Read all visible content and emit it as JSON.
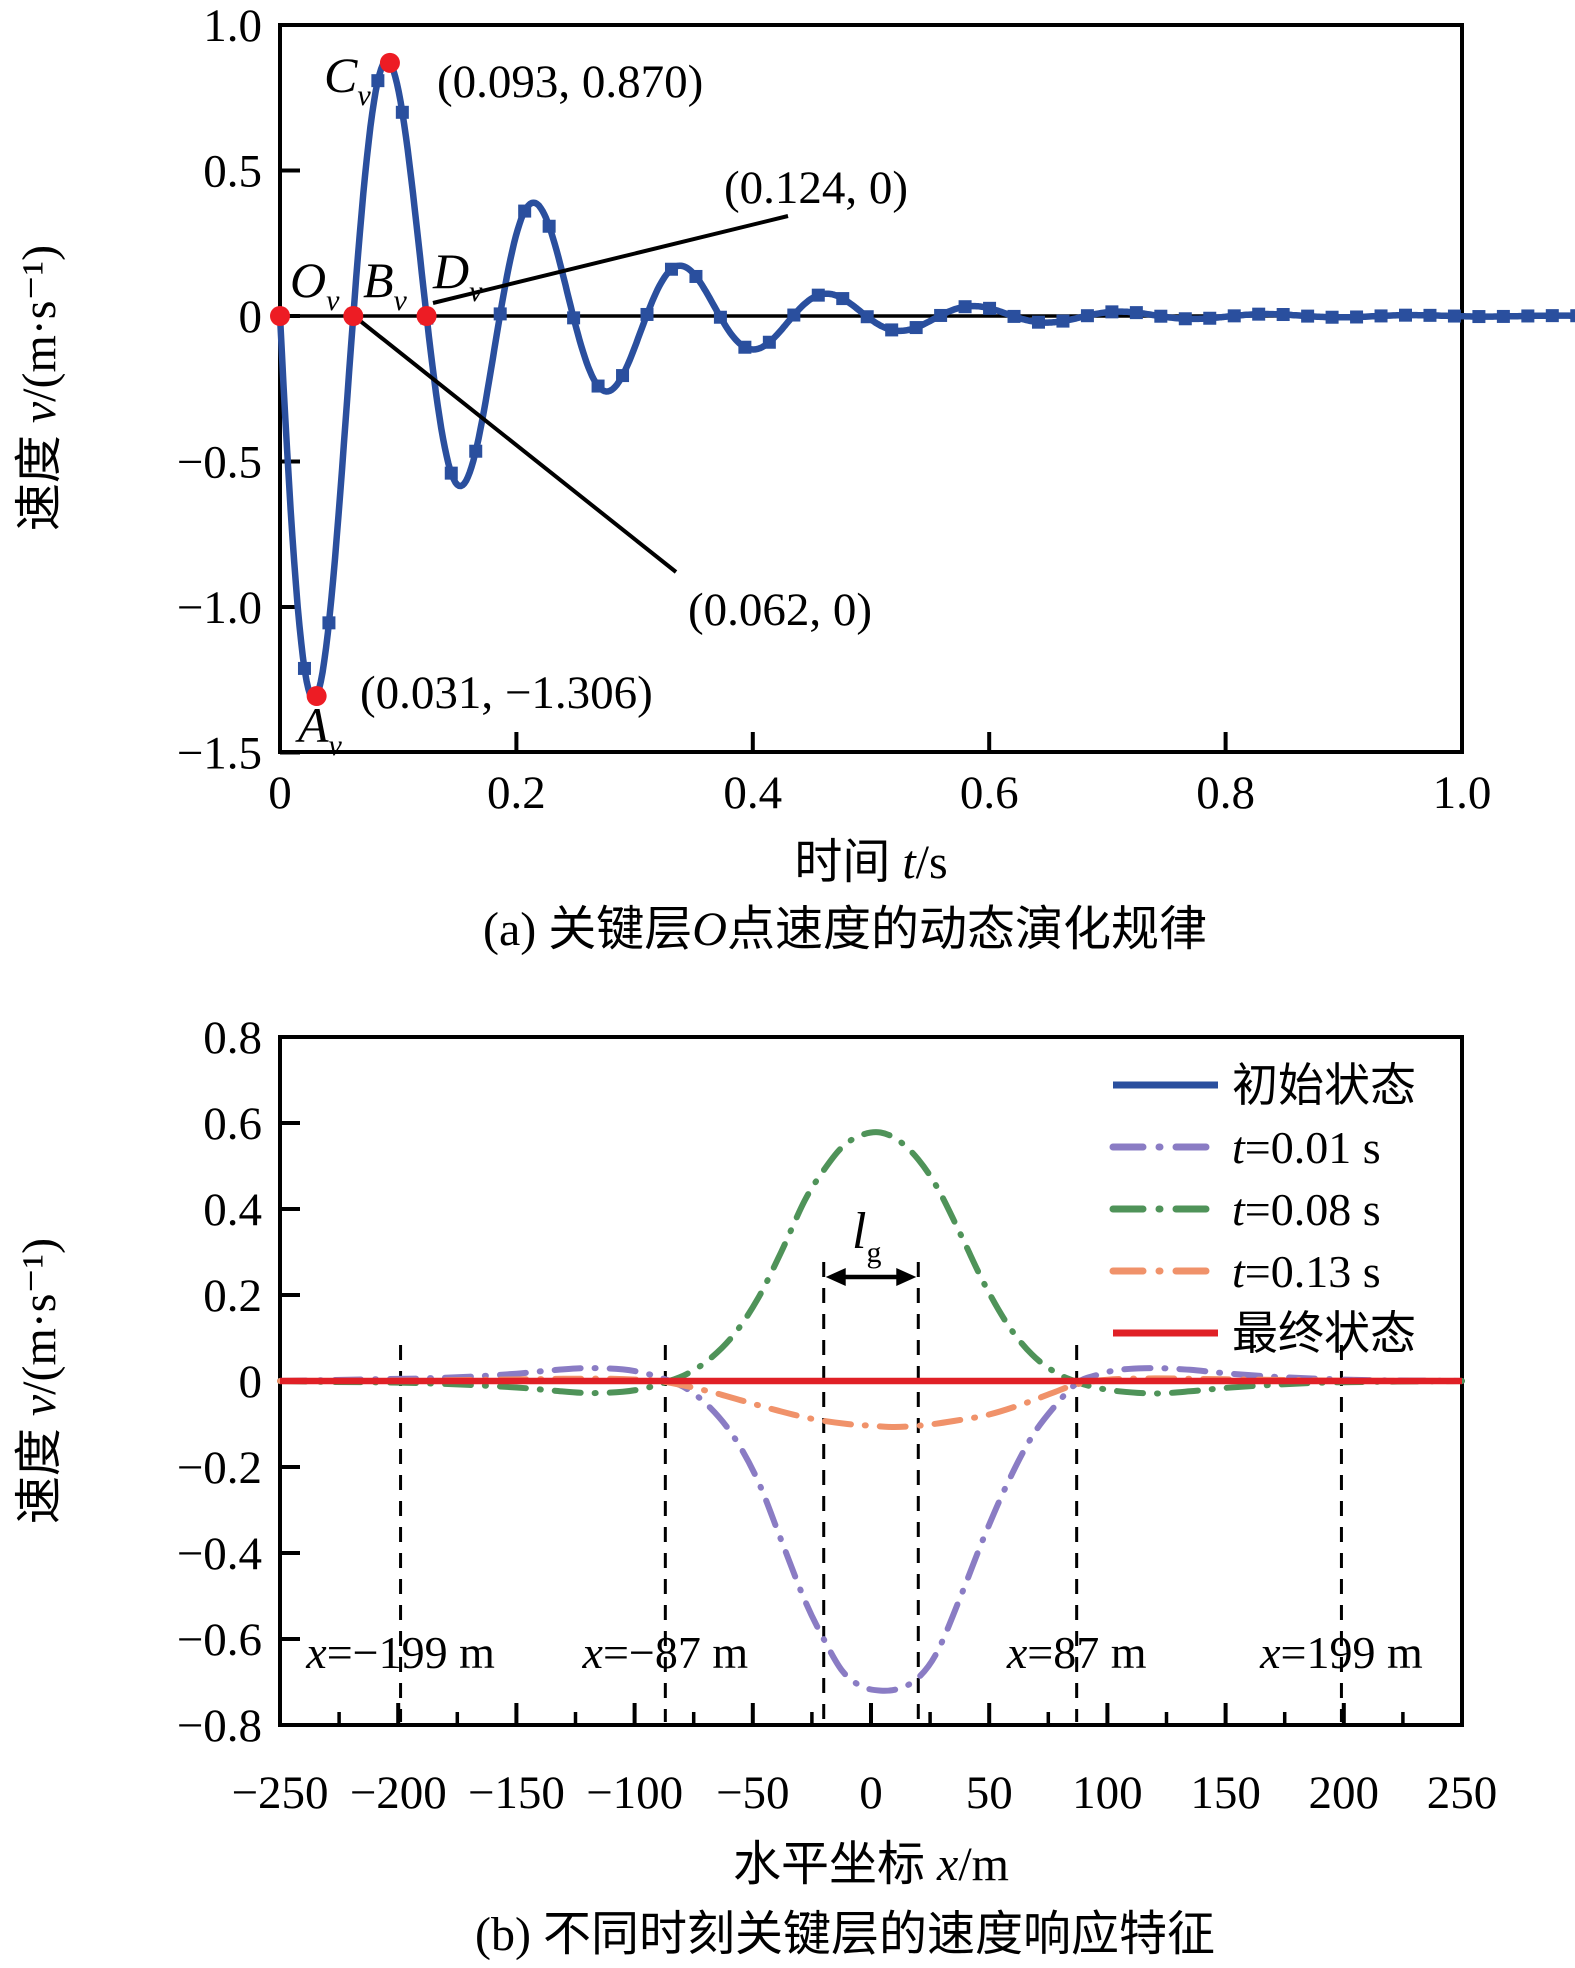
{
  "figure": {
    "background": "#ffffff",
    "colors": {
      "curve_blue": "#2a4f9e",
      "annotation_red": "#ed1c24",
      "final_red": "#e02026",
      "purple": "#8a7cc4",
      "green": "#4f9359",
      "orange": "#f0926a",
      "axis_black": "#000000"
    }
  },
  "chart_data": [
    {
      "id": "a",
      "type": "line",
      "caption": "(a) 关键层O点速度的动态演化规律",
      "xlabel": "时间 t/s",
      "ylabel": "速度 v/(m·s⁻¹)",
      "xlim": [
        0,
        1.0
      ],
      "ylim": [
        -1.5,
        1.0
      ],
      "x_tick_values": [
        0,
        0.2,
        0.4,
        0.6,
        0.8,
        1.0
      ],
      "x_tick_labels": [
        "0",
        "0.2",
        "0.4",
        "0.6",
        "0.8",
        "1.0"
      ],
      "y_tick_values": [
        1.0,
        0.5,
        0,
        -0.5,
        -1.0,
        -1.5
      ],
      "y_tick_labels": [
        "1.0",
        "0.5",
        "0",
        "−0.5",
        "−1.0",
        "−1.5"
      ],
      "grid": false,
      "series": [
        {
          "name": "关键层O点速度",
          "color": "#2a4f9e",
          "line": "solid",
          "marker": "square",
          "model": {
            "type": "damped_sine",
            "formula": "v(t) = −A·exp(−λt)·sin(2πt/T)",
            "A": 1.6,
            "lambda": 6.55,
            "T": 0.124,
            "t_start": 0,
            "t_end": 1.115,
            "marker_step": 0.0207
          }
        }
      ],
      "key_points": [
        {
          "name": "O",
          "sub": "v",
          "t": 0,
          "v": 0
        },
        {
          "name": "A",
          "sub": "v",
          "t": 0.031,
          "v": -1.306
        },
        {
          "name": "B",
          "sub": "v",
          "t": 0.062,
          "v": 0
        },
        {
          "name": "C",
          "sub": "v",
          "t": 0.093,
          "v": 0.87
        },
        {
          "name": "D",
          "sub": "v",
          "t": 0.124,
          "v": 0
        }
      ],
      "annotations": [
        {
          "text": "(0.093, 0.870)",
          "refers_to": "C_v"
        },
        {
          "text": "(0.124, 0)",
          "refers_to": "D_v"
        },
        {
          "text": "(0.062, 0)",
          "refers_to": "B_v"
        },
        {
          "text": "(0.031, −1.306)",
          "refers_to": "A_v"
        }
      ],
      "point_color": "#ed1c24"
    },
    {
      "id": "b",
      "type": "line",
      "caption": "(b) 不同时刻关键层的速度响应特征",
      "xlabel": "水平坐标 x/m",
      "ylabel": "速度 v/(m·s⁻¹)",
      "xlim": [
        -250,
        250
      ],
      "ylim": [
        -0.8,
        0.8
      ],
      "x_tick_values": [
        -250,
        -200,
        -150,
        -100,
        -50,
        0,
        50,
        100,
        150,
        200,
        250
      ],
      "x_tick_labels": [
        "−250",
        "−200",
        "−150",
        "−100",
        "−50",
        "0",
        "50",
        "100",
        "150",
        "200",
        "250"
      ],
      "x_minor_tick_values": [
        -225,
        -175,
        -125,
        -75,
        -25,
        25,
        75,
        125,
        175,
        225
      ],
      "y_tick_values": [
        0.8,
        0.6,
        0.4,
        0.2,
        0,
        -0.2,
        -0.4,
        -0.6,
        -0.8
      ],
      "y_tick_labels": [
        "0.8",
        "0.6",
        "0.4",
        "0.2",
        "0",
        "−0.2",
        "−0.4",
        "−0.6",
        "−0.8"
      ],
      "grid": false,
      "legend_position": "top-right",
      "series": [
        {
          "name": "初始状态",
          "color": "#2a4f9e",
          "line": "solid",
          "points": [
            [
              -250,
              0
            ],
            [
              250,
              0
            ]
          ]
        },
        {
          "name": "t=0.01 s",
          "color": "#8a7cc4",
          "line": "dashdot",
          "points": [
            [
              -250,
              0
            ],
            [
              -230,
              0.002
            ],
            [
              -210,
              0.004
            ],
            [
              -190,
              0.006
            ],
            [
              -170,
              0.01
            ],
            [
              -150,
              0.017
            ],
            [
              -135,
              0.025
            ],
            [
              -120,
              0.03
            ],
            [
              -105,
              0.027
            ],
            [
              -95,
              0.017
            ],
            [
              -87,
              0.004
            ],
            [
              -78,
              -0.018
            ],
            [
              -68,
              -0.062
            ],
            [
              -58,
              -0.13
            ],
            [
              -48,
              -0.23
            ],
            [
              -38,
              -0.37
            ],
            [
              -28,
              -0.51
            ],
            [
              -20,
              -0.6
            ],
            [
              -12,
              -0.675
            ],
            [
              -4,
              -0.71
            ],
            [
              4,
              -0.72
            ],
            [
              12,
              -0.715
            ],
            [
              20,
              -0.69
            ],
            [
              28,
              -0.63
            ],
            [
              38,
              -0.5
            ],
            [
              48,
              -0.36
            ],
            [
              58,
              -0.235
            ],
            [
              68,
              -0.13
            ],
            [
              78,
              -0.057
            ],
            [
              87,
              -0.005
            ],
            [
              95,
              0.013
            ],
            [
              105,
              0.026
            ],
            [
              120,
              0.03
            ],
            [
              135,
              0.026
            ],
            [
              150,
              0.018
            ],
            [
              170,
              0.01
            ],
            [
              190,
              0.005
            ],
            [
              210,
              0.002
            ],
            [
              230,
              0.001
            ],
            [
              250,
              0
            ]
          ]
        },
        {
          "name": "t=0.08 s",
          "color": "#4f9359",
          "line": "dashdot",
          "points": [
            [
              -250,
              0
            ],
            [
              -230,
              -0.002
            ],
            [
              -210,
              -0.003
            ],
            [
              -190,
              -0.005
            ],
            [
              -170,
              -0.009
            ],
            [
              -150,
              -0.015
            ],
            [
              -135,
              -0.022
            ],
            [
              -120,
              -0.028
            ],
            [
              -105,
              -0.025
            ],
            [
              -95,
              -0.016
            ],
            [
              -87,
              -0.003
            ],
            [
              -78,
              0.016
            ],
            [
              -68,
              0.052
            ],
            [
              -58,
              0.108
            ],
            [
              -48,
              0.19
            ],
            [
              -38,
              0.3
            ],
            [
              -28,
              0.42
            ],
            [
              -20,
              0.49
            ],
            [
              -12,
              0.545
            ],
            [
              -4,
              0.572
            ],
            [
              4,
              0.578
            ],
            [
              12,
              0.558
            ],
            [
              20,
              0.515
            ],
            [
              28,
              0.45
            ],
            [
              38,
              0.34
            ],
            [
              48,
              0.225
            ],
            [
              58,
              0.13
            ],
            [
              68,
              0.062
            ],
            [
              78,
              0.02
            ],
            [
              87,
              -0.002
            ],
            [
              95,
              -0.015
            ],
            [
              105,
              -0.024
            ],
            [
              120,
              -0.029
            ],
            [
              135,
              -0.024
            ],
            [
              150,
              -0.016
            ],
            [
              170,
              -0.009
            ],
            [
              190,
              -0.004
            ],
            [
              210,
              -0.002
            ],
            [
              230,
              -0.001
            ],
            [
              250,
              0
            ]
          ]
        },
        {
          "name": "t=0.13 s",
          "color": "#f0926a",
          "line": "dashdot",
          "points": [
            [
              -250,
              0
            ],
            [
              -200,
              0.001
            ],
            [
              -160,
              0.003
            ],
            [
              -130,
              0.005
            ],
            [
              -110,
              0.005
            ],
            [
              -95,
              0.002
            ],
            [
              -87,
              -0.002
            ],
            [
              -70,
              -0.022
            ],
            [
              -55,
              -0.045
            ],
            [
              -40,
              -0.068
            ],
            [
              -25,
              -0.088
            ],
            [
              -10,
              -0.1
            ],
            [
              0,
              -0.104
            ],
            [
              10,
              -0.107
            ],
            [
              22,
              -0.103
            ],
            [
              35,
              -0.093
            ],
            [
              50,
              -0.078
            ],
            [
              65,
              -0.052
            ],
            [
              78,
              -0.025
            ],
            [
              87,
              -0.008
            ],
            [
              100,
              0.003
            ],
            [
              120,
              0.006
            ],
            [
              150,
              0.004
            ],
            [
              200,
              0.001
            ],
            [
              250,
              0
            ]
          ]
        },
        {
          "name": "最终状态",
          "color": "#e02026",
          "line": "solid",
          "points": [
            [
              -250,
              0
            ],
            [
              250,
              0
            ]
          ]
        }
      ],
      "guide_lines": {
        "x_values": [
          -199,
          -87,
          -20,
          20,
          87,
          199
        ],
        "labels": [
          {
            "text": "x=−199 m",
            "x": -199
          },
          {
            "text": "x=−87 m",
            "x": -87
          },
          {
            "text": "x=87 m",
            "x": 87
          },
          {
            "text": "x=199 m",
            "x": 199
          }
        ]
      },
      "lg_annotation": {
        "main": "l",
        "sub": "g",
        "span": [
          -20,
          20
        ]
      }
    }
  ]
}
